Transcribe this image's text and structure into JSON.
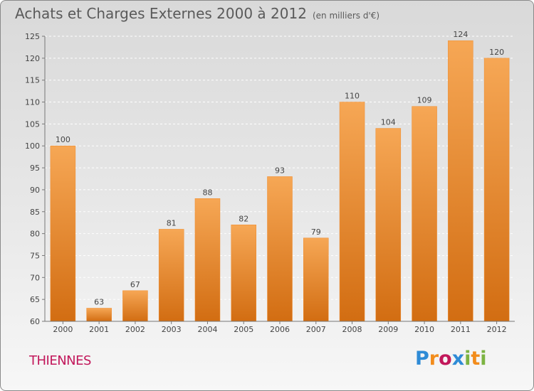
{
  "title": "Achats et Charges Externes 2000 à 2012",
  "subtitle": "(en milliers d'€)",
  "town": "THIENNES",
  "brand": {
    "letters": [
      "P",
      "r",
      "o",
      "x",
      "i",
      "t",
      "i"
    ],
    "colors": [
      "#2e8bd6",
      "#f28c1c",
      "#c2185b",
      "#2e8bd6",
      "#7cb342",
      "#f28c1c",
      "#7cb342"
    ]
  },
  "colors": {
    "bar": "#f08a2a",
    "bar_light": "#f6a755",
    "bar_dark": "#d26d12",
    "title": "#5a5a5a",
    "town": "#c2185b"
  },
  "chart_data": {
    "type": "bar",
    "categories": [
      "2000",
      "2001",
      "2002",
      "2003",
      "2004",
      "2005",
      "2006",
      "2007",
      "2008",
      "2009",
      "2010",
      "2011",
      "2012"
    ],
    "values": [
      100,
      63,
      67,
      81,
      88,
      82,
      93,
      79,
      110,
      104,
      109,
      124,
      120
    ],
    "ylim": [
      60,
      125
    ],
    "yticks": [
      60,
      65,
      70,
      75,
      80,
      85,
      90,
      95,
      100,
      105,
      110,
      115,
      120,
      125
    ],
    "xlabel": "",
    "ylabel": "",
    "grid": true
  }
}
